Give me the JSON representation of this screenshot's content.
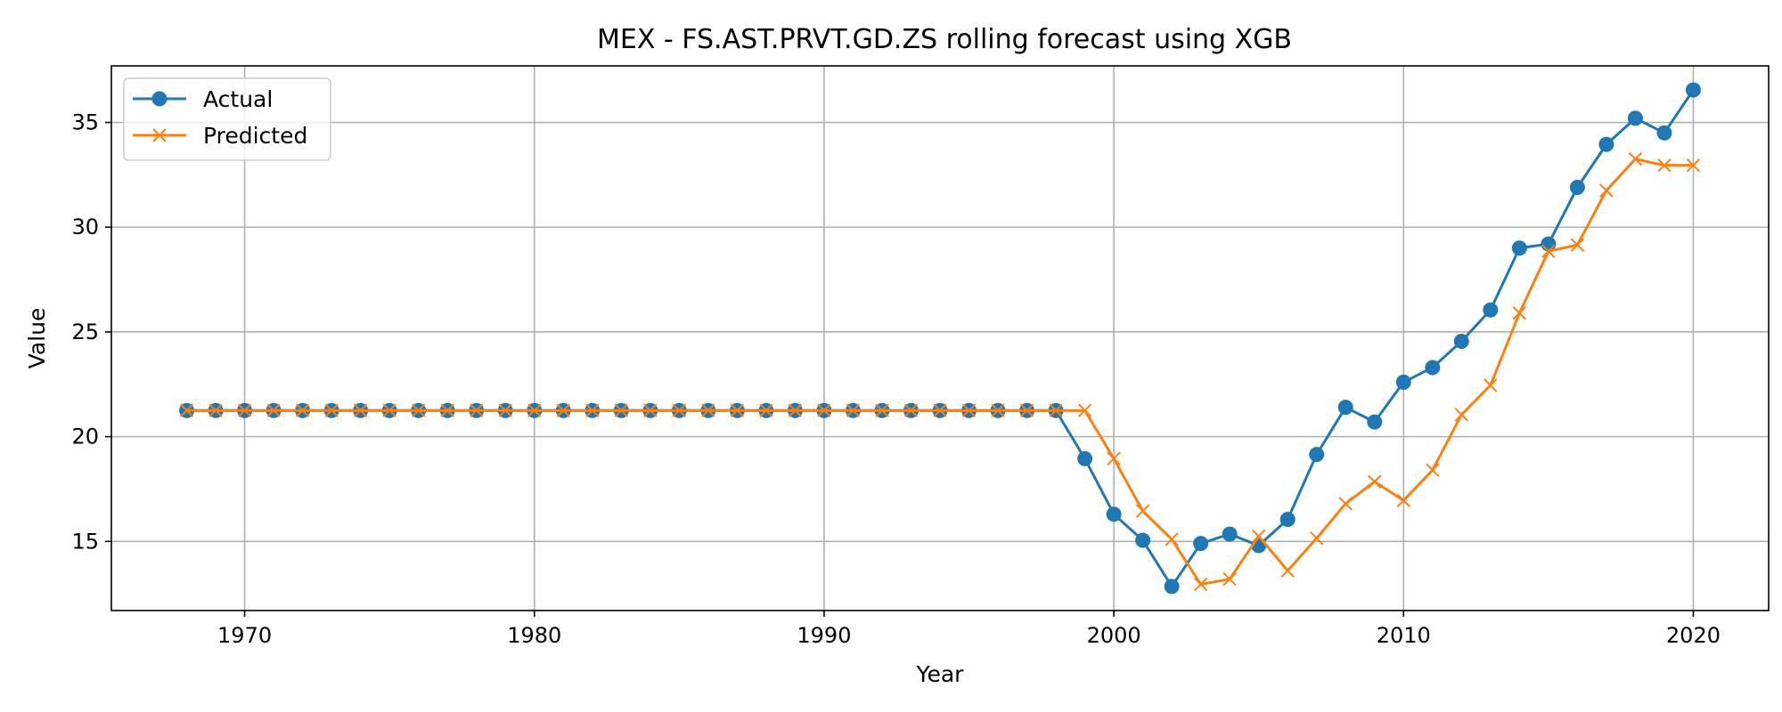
{
  "chart_data": {
    "type": "line",
    "title": "MEX - FS.AST.PRVT.GD.ZS rolling forecast using XGB",
    "xlabel": "Year",
    "ylabel": "Value",
    "xlim": [
      1965.4,
      2022.6
    ],
    "ylim": [
      11.7,
      37.7
    ],
    "xticks": [
      1970,
      1980,
      1990,
      2000,
      2010,
      2020
    ],
    "yticks": [
      15,
      20,
      25,
      30,
      35
    ],
    "grid": true,
    "legend_position": "top-left",
    "x": [
      1968,
      1969,
      1970,
      1971,
      1972,
      1973,
      1974,
      1975,
      1976,
      1977,
      1978,
      1979,
      1980,
      1981,
      1982,
      1983,
      1984,
      1985,
      1986,
      1987,
      1988,
      1989,
      1990,
      1991,
      1992,
      1993,
      1994,
      1995,
      1996,
      1997,
      1998,
      1999,
      2000,
      2001,
      2002,
      2003,
      2004,
      2005,
      2006,
      2007,
      2008,
      2009,
      2010,
      2011,
      2012,
      2013,
      2014,
      2015,
      2016,
      2017,
      2018,
      2019,
      2020
    ],
    "series": [
      {
        "name": "Actual",
        "color": "#1f77b4",
        "marker": "circle",
        "values": [
          21.25,
          21.25,
          21.25,
          21.25,
          21.25,
          21.25,
          21.25,
          21.25,
          21.25,
          21.25,
          21.25,
          21.25,
          21.25,
          21.25,
          21.25,
          21.25,
          21.25,
          21.25,
          21.25,
          21.25,
          21.25,
          21.25,
          21.25,
          21.25,
          21.25,
          21.25,
          21.25,
          21.25,
          21.25,
          21.25,
          21.25,
          18.95,
          16.3,
          15.05,
          12.85,
          14.9,
          15.35,
          14.8,
          16.05,
          19.15,
          21.4,
          20.7,
          22.6,
          23.3,
          24.55,
          26.05,
          29.0,
          29.2,
          31.9,
          33.95,
          35.2,
          34.5,
          36.55
        ]
      },
      {
        "name": "Predicted",
        "color": "#ff7f0e",
        "marker": "x",
        "values": [
          21.25,
          21.25,
          21.25,
          21.25,
          21.25,
          21.25,
          21.25,
          21.25,
          21.25,
          21.25,
          21.25,
          21.25,
          21.25,
          21.25,
          21.25,
          21.25,
          21.25,
          21.25,
          21.25,
          21.25,
          21.25,
          21.25,
          21.25,
          21.25,
          21.25,
          21.25,
          21.25,
          21.25,
          21.25,
          21.25,
          21.25,
          21.25,
          18.95,
          16.45,
          15.1,
          12.95,
          13.2,
          15.25,
          13.6,
          15.15,
          16.8,
          17.85,
          16.95,
          18.4,
          21.05,
          22.45,
          25.9,
          28.85,
          29.15,
          31.75,
          33.25,
          32.95,
          32.95
        ]
      }
    ]
  }
}
